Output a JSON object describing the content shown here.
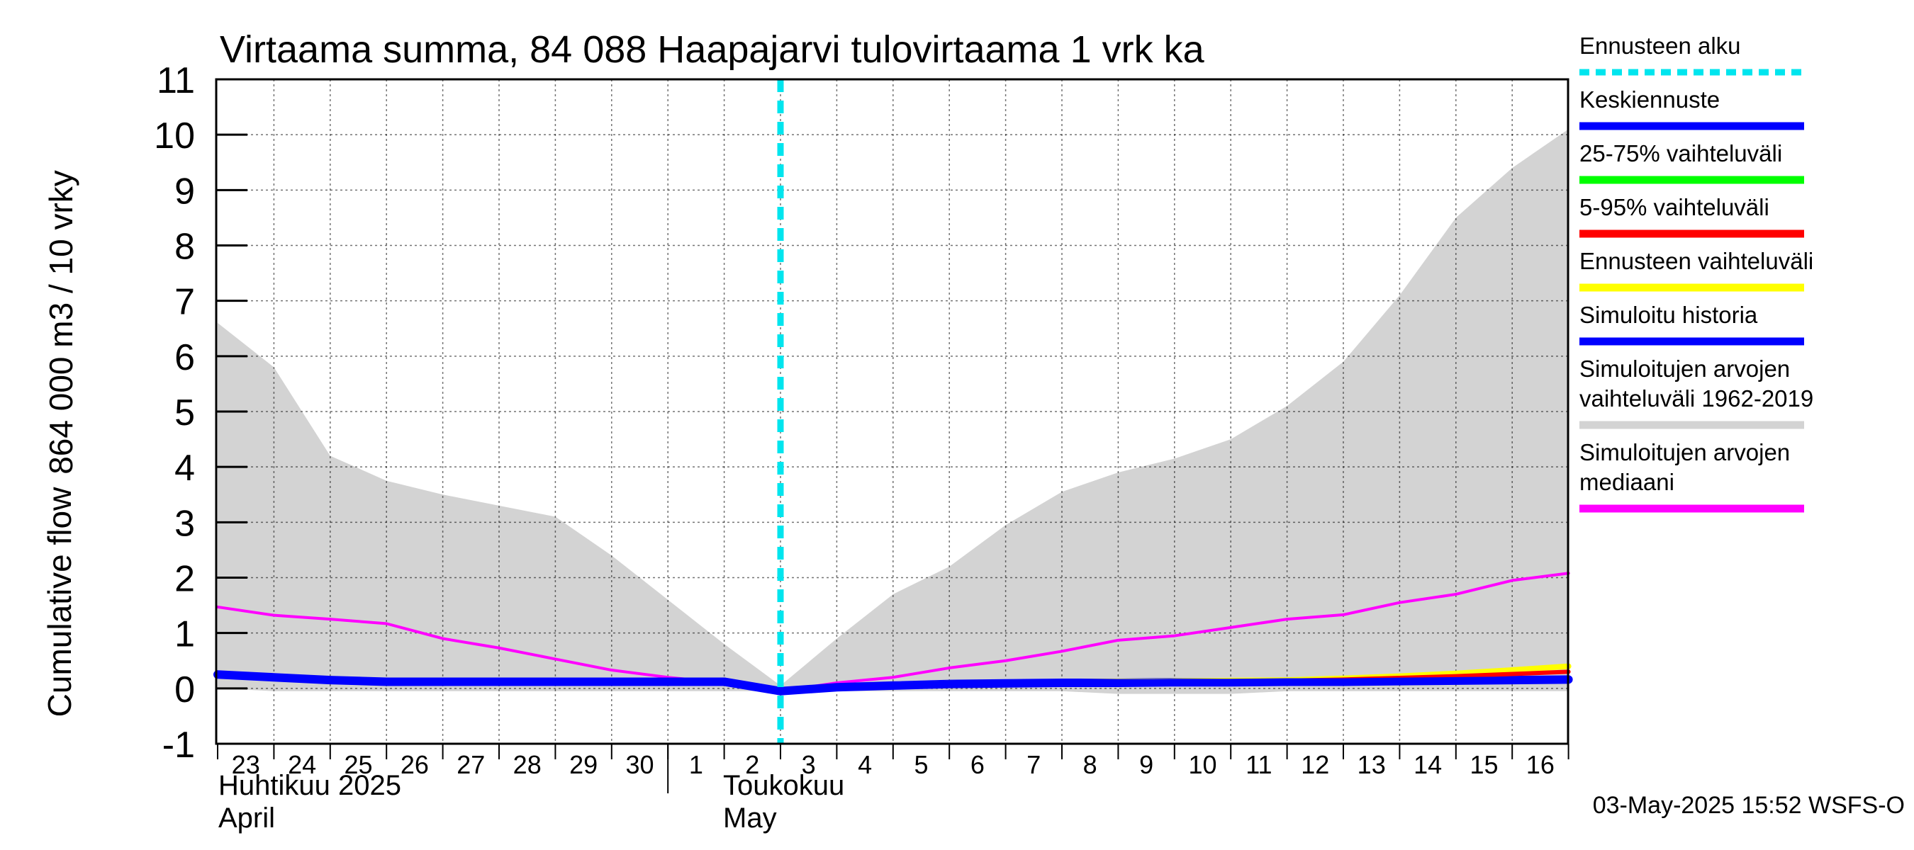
{
  "chart_data": {
    "type": "area",
    "title": "Virtaama summa, 84 088 Haapajarvi tulovirtaama 1 vrk ka",
    "ylabel_line1": "864 000 m3 / 10 vrky",
    "ylabel_line2": "Cumulative flow",
    "ylim": [
      -1,
      11
    ],
    "y_ticks": [
      -1,
      0,
      1,
      2,
      3,
      4,
      5,
      6,
      7,
      8,
      9,
      10,
      11
    ],
    "x_day_labels": [
      "23",
      "24",
      "25",
      "26",
      "27",
      "28",
      "29",
      "30",
      "1",
      "2",
      "3",
      "4",
      "5",
      "6",
      "7",
      "8",
      "9",
      "10",
      "11",
      "12",
      "13",
      "14",
      "15",
      "16"
    ],
    "month_labels": [
      {
        "fi": "Huhtikuu  2025",
        "en": "April"
      },
      {
        "fi": "Toukokuu",
        "en": "May"
      }
    ],
    "forecast_start_index": 10,
    "series": [
      {
        "name": "Simuloitujen arvojen vaihteluväli 1962-2019 (max)",
        "color": "#d3d3d3",
        "values": [
          6.6,
          5.8,
          4.2,
          3.75,
          3.5,
          3.3,
          3.1,
          2.4,
          1.6,
          0.8,
          0.05,
          0.9,
          1.7,
          2.2,
          2.95,
          3.55,
          3.9,
          4.15,
          4.5,
          5.1,
          5.9,
          7.1,
          8.5,
          9.4,
          10.1
        ]
      },
      {
        "name": "Simuloitujen arvojen vaihteluväli 1962-2019 (min)",
        "color": "#d3d3d3",
        "values": [
          0.0,
          -0.05,
          -0.05,
          -0.05,
          -0.05,
          -0.05,
          -0.05,
          -0.05,
          -0.05,
          -0.05,
          -0.05,
          -0.05,
          -0.05,
          -0.05,
          -0.05,
          -0.05,
          -0.1,
          -0.1,
          -0.1,
          -0.05,
          -0.05,
          -0.05,
          -0.05,
          -0.05,
          -0.05
        ]
      },
      {
        "name": "Simuloitujen arvojen mediaani",
        "color": "#ff00ff",
        "values": [
          1.47,
          1.32,
          1.25,
          1.17,
          0.9,
          0.73,
          0.53,
          0.33,
          0.2,
          0.1,
          -0.05,
          0.1,
          0.2,
          0.37,
          0.5,
          0.67,
          0.87,
          0.95,
          1.1,
          1.25,
          1.33,
          1.55,
          1.7,
          1.95,
          2.08
        ]
      },
      {
        "name": "Simuloitu historia",
        "color": "#0000ff",
        "values": [
          0.25,
          0.2,
          0.15,
          0.12,
          0.12,
          0.12,
          0.12,
          0.12,
          0.12,
          0.12,
          -0.05,
          0.02,
          0.05,
          0.08,
          0.09,
          0.1,
          0.1,
          0.11,
          0.11,
          0.12,
          0.12,
          0.13,
          0.14,
          0.15,
          0.16
        ]
      },
      {
        "name": "Ennusteen vaihteluväli",
        "color": "#ffff00",
        "values": [
          null,
          null,
          null,
          null,
          null,
          null,
          null,
          null,
          null,
          null,
          -0.05,
          0.02,
          0.06,
          0.09,
          0.1,
          0.11,
          0.12,
          0.13,
          0.14,
          0.15,
          0.18,
          0.22,
          0.27,
          0.33,
          0.4
        ]
      },
      {
        "name": "5-95% vaihteluväli",
        "color": "#ff0000",
        "values": [
          null,
          null,
          null,
          null,
          null,
          null,
          null,
          null,
          null,
          null,
          -0.05,
          0.02,
          0.05,
          0.08,
          0.09,
          0.1,
          0.11,
          0.12,
          0.13,
          0.14,
          0.16,
          0.19,
          0.22,
          0.26,
          0.3
        ]
      },
      {
        "name": "Keskiennuste",
        "color": "#0000ff",
        "values": [
          null,
          null,
          null,
          null,
          null,
          null,
          null,
          null,
          null,
          null,
          -0.05,
          0.02,
          0.05,
          0.08,
          0.09,
          0.1,
          0.1,
          0.11,
          0.11,
          0.12,
          0.12,
          0.13,
          0.14,
          0.15,
          0.16
        ]
      }
    ],
    "legend": [
      {
        "label": "Ennusteen alku",
        "color": "#00e5ee",
        "style": "dashed"
      },
      {
        "label": "Keskiennuste",
        "color": "#0000ff",
        "style": "solid"
      },
      {
        "label": "25-75% vaihteluväli",
        "color": "#00ff00",
        "style": "solid"
      },
      {
        "label": "5-95% vaihteluväli",
        "color": "#ff0000",
        "style": "solid"
      },
      {
        "label": "Ennusteen vaihteluväli",
        "color": "#ffff00",
        "style": "solid"
      },
      {
        "label": "Simuloitu historia",
        "color": "#0000ff",
        "style": "solid"
      },
      {
        "label": "Simuloitujen arvojen\nvaihteluväli 1962-2019",
        "color": "#d3d3d3",
        "style": "solid"
      },
      {
        "label": "Simuloitujen arvojen\nmediaani",
        "color": "#ff00ff",
        "style": "solid"
      }
    ],
    "legend_position": "right",
    "grid": true,
    "footer": "03-May-2025 15:52 WSFS-O"
  }
}
